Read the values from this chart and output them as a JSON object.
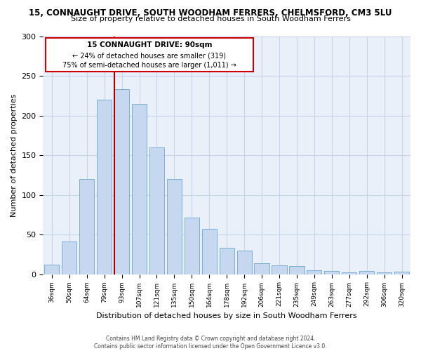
{
  "title": "15, CONNAUGHT DRIVE, SOUTH WOODHAM FERRERS, CHELMSFORD, CM3 5LU",
  "subtitle": "Size of property relative to detached houses in South Woodham Ferrers",
  "xlabel": "Distribution of detached houses by size in South Woodham Ferrers",
  "ylabel": "Number of detached properties",
  "categories": [
    "36sqm",
    "50sqm",
    "64sqm",
    "79sqm",
    "93sqm",
    "107sqm",
    "121sqm",
    "135sqm",
    "150sqm",
    "164sqm",
    "178sqm",
    "192sqm",
    "206sqm",
    "221sqm",
    "235sqm",
    "249sqm",
    "263sqm",
    "277sqm",
    "292sqm",
    "306sqm",
    "320sqm"
  ],
  "values": [
    12,
    41,
    120,
    220,
    233,
    215,
    160,
    120,
    71,
    57,
    33,
    30,
    14,
    11,
    10,
    5,
    4,
    2,
    4,
    2,
    3
  ],
  "bar_color": "#c5d8f0",
  "bar_edge_color": "#7bafd4",
  "bg_color": "#eaf0f9",
  "grid_color": "#c8d4e8",
  "annotation_text_line1": "15 CONNAUGHT DRIVE: 90sqm",
  "annotation_text_line2": "← 24% of detached houses are smaller (319)",
  "annotation_text_line3": "75% of semi-detached houses are larger (1,011) →",
  "red_line_color": "#aa0000",
  "annotation_box_color": "#ffffff",
  "annotation_box_edge": "#cc0000",
  "footer_line1": "Contains HM Land Registry data © Crown copyright and database right 2024.",
  "footer_line2": "Contains public sector information licensed under the Open Government Licence v3.0.",
  "ylim": [
    0,
    300
  ],
  "red_line_sqm": 90
}
